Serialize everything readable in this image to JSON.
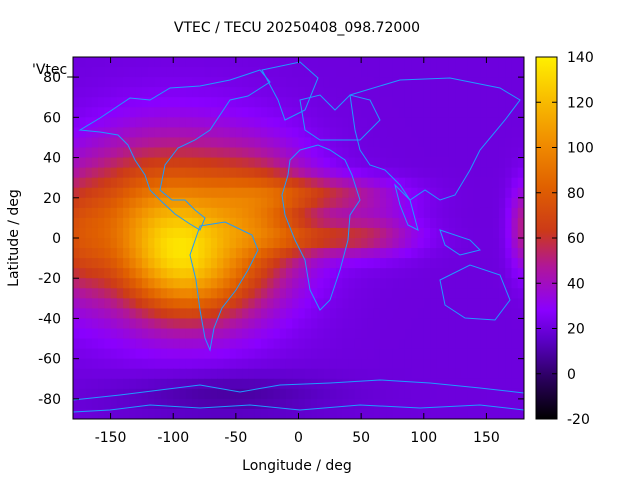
{
  "chart_data": {
    "type": "heatmap",
    "title": "VTEC / TECU 20250408_098.72000",
    "xlabel": "Longitude / deg",
    "ylabel": "Latitude / deg",
    "series_label": "'Vtec_",
    "xlim": [
      -180,
      180
    ],
    "ylim": [
      -90,
      90
    ],
    "x_ticks": [
      -150,
      -100,
      -50,
      0,
      50,
      100,
      150
    ],
    "y_ticks": [
      -80,
      -60,
      -40,
      -20,
      0,
      20,
      40,
      60,
      80
    ],
    "colorbar": {
      "range": [
        -20,
        140
      ],
      "ticks": [
        140,
        120,
        100,
        80,
        60,
        40,
        20,
        0,
        -20
      ],
      "colormap": "gnuplot-rgbformulae-7-5-15",
      "stops": [
        "#000000",
        "#2a005c",
        "#5c00c8",
        "#8a00ff",
        "#b0169a",
        "#cc3a18",
        "#e06000",
        "#f08c00",
        "#f8bc00",
        "#fff000"
      ]
    },
    "background_value": 20,
    "blobs": [
      {
        "lon": -95,
        "lat": 5,
        "sx": 55,
        "sy": 30,
        "amp": 65
      },
      {
        "lon": -95,
        "lat": -10,
        "sx": 28,
        "sy": 18,
        "amp": 35
      },
      {
        "lon": -130,
        "lat": 8,
        "sx": 40,
        "sy": 25,
        "amp": 20
      },
      {
        "lon": -30,
        "lat": 12,
        "sx": 30,
        "sy": 20,
        "amp": 35
      },
      {
        "lon": 20,
        "lat": 22,
        "sx": 40,
        "sy": 6,
        "amp": 28
      },
      {
        "lon": 25,
        "lat": 0,
        "sx": 40,
        "sy": 6,
        "amp": 28
      },
      {
        "lon": 60,
        "lat": 5,
        "sx": 25,
        "sy": 10,
        "amp": 15
      },
      {
        "lon": 180,
        "lat": 5,
        "sx": 8,
        "sy": 15,
        "amp": 30
      },
      {
        "lon": -180,
        "lat": 0,
        "sx": 18,
        "sy": 20,
        "amp": 25
      },
      {
        "lon": -60,
        "lat": -78,
        "sx": 60,
        "sy": 8,
        "amp": -12
      },
      {
        "lon": -70,
        "lat": -25,
        "sx": 35,
        "sy": 15,
        "amp": 20
      }
    ]
  }
}
